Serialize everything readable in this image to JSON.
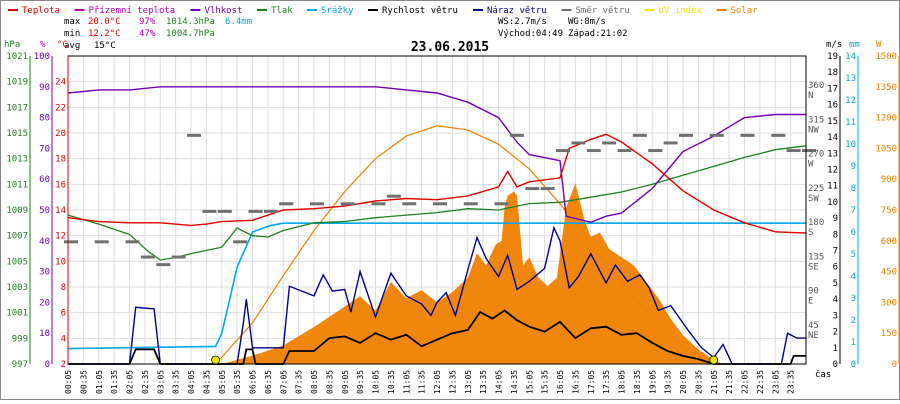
{
  "colors": {
    "teplota": "#e00000",
    "prizemni": "#b000b0",
    "vlhkost": "#7000b0",
    "tlak": "#208020",
    "srazky": "#00a8e8",
    "rychlost": "#000000",
    "naraz": "#000090",
    "smer": "#707070",
    "uv": "#e8e800",
    "solar": "#f08000"
  },
  "legend": [
    {
      "key": "teplota",
      "label": "Teplota"
    },
    {
      "key": "prizemni",
      "label": "Přízemní teplota"
    },
    {
      "key": "vlhkost",
      "label": "Vlhkost"
    },
    {
      "key": "tlak",
      "label": "Tlak"
    },
    {
      "key": "srazky",
      "label": "Srážky"
    },
    {
      "key": "rychlost",
      "label": "Rychlost větru"
    },
    {
      "key": "naraz",
      "label": "Náraz větru"
    },
    {
      "key": "smer",
      "label": "Směr větru"
    },
    {
      "key": "uv",
      "label": "UV index"
    },
    {
      "key": "solar",
      "label": "Solar"
    }
  ],
  "stats": {
    "max": {
      "label": "max",
      "temp": "20.0°C",
      "hum": "97%",
      "press": "1014.3hPa",
      "rain": "6.4mm"
    },
    "min": {
      "label": "min",
      "temp": "12.2°C",
      "hum": "47%",
      "press": "1004.7hPa"
    },
    "avg": {
      "label": "avg",
      "temp": "15°C"
    },
    "ws": "WS:2.7m/s",
    "wg": "WG:8m/s",
    "sunrise": "Východ:04:49",
    "sunset": "Západ:21:02"
  },
  "chart_data": {
    "type": "line",
    "title": "23.06.2015",
    "xlabel": "čas",
    "x_ticks": [
      "00:05",
      "00:35",
      "01:05",
      "01:35",
      "02:05",
      "02:35",
      "03:05",
      "03:35",
      "04:05",
      "04:35",
      "05:05",
      "05:35",
      "06:05",
      "06:35",
      "07:05",
      "07:35",
      "08:05",
      "08:35",
      "09:05",
      "09:35",
      "10:05",
      "10:35",
      "11:05",
      "11:35",
      "12:05",
      "12:35",
      "13:05",
      "13:35",
      "14:05",
      "14:35",
      "15:05",
      "15:35",
      "16:05",
      "16:35",
      "17:05",
      "17:35",
      "18:05",
      "18:35",
      "19:05",
      "19:35",
      "20:05",
      "20:35",
      "21:05",
      "21:35",
      "22:05",
      "22:35",
      "23:05",
      "23:35"
    ],
    "axes": {
      "hpa": {
        "unit": "hPa",
        "min": 997,
        "max": 1021,
        "ticks": [
          997,
          999,
          1001,
          1003,
          1005,
          1007,
          1009,
          1011,
          1013,
          1015,
          1017,
          1019,
          1021
        ]
      },
      "pct": {
        "unit": "%",
        "min": 0,
        "max": 100,
        "ticks": [
          0,
          10,
          20,
          30,
          40,
          50,
          60,
          70,
          80,
          90,
          100
        ]
      },
      "degc": {
        "unit": "°C",
        "min": 2,
        "max": 26,
        "ticks": [
          2,
          4,
          6,
          8,
          10,
          12,
          14,
          16,
          18,
          20,
          22,
          24
        ]
      },
      "dir": {
        "ticks": [
          "",
          "NE",
          "E",
          "SE",
          "S",
          "SW",
          "W",
          "NW",
          "N"
        ],
        "deg": [
          "",
          "45",
          "90",
          "135",
          "180",
          "225",
          "270",
          "315",
          "360"
        ]
      },
      "ms": {
        "unit": "m/s",
        "min": 0,
        "max": 19,
        "ticks": [
          0,
          1,
          2,
          3,
          4,
          5,
          6,
          7,
          8,
          9,
          10,
          11,
          12,
          13,
          14,
          15,
          16,
          17,
          18,
          19
        ]
      },
      "mm": {
        "unit": "mm",
        "min": 0,
        "max": 14,
        "ticks": [
          0,
          1,
          2,
          3,
          4,
          5,
          6,
          7,
          8,
          9,
          10,
          11,
          12,
          13,
          14
        ]
      },
      "w": {
        "unit": "W",
        "min": 0,
        "max": 1500,
        "ticks": [
          0,
          150,
          300,
          450,
          600,
          750,
          900,
          1050,
          1200,
          1350,
          1500
        ]
      }
    },
    "series": {
      "teplota_c": [
        [
          0,
          13.4
        ],
        [
          1,
          13.1
        ],
        [
          2,
          13.0
        ],
        [
          3,
          13.0
        ],
        [
          4,
          12.8
        ],
        [
          4.5,
          12.9
        ],
        [
          5,
          13.1
        ],
        [
          6,
          13.2
        ],
        [
          7,
          14.0
        ],
        [
          8,
          14.1
        ],
        [
          9,
          14.3
        ],
        [
          10,
          14.7
        ],
        [
          11,
          14.9
        ],
        [
          12,
          14.8
        ],
        [
          13,
          15.1
        ],
        [
          14,
          15.8
        ],
        [
          14.3,
          17.0
        ],
        [
          14.6,
          15.8
        ],
        [
          15,
          16.2
        ],
        [
          16,
          16.5
        ],
        [
          16.3,
          18.8
        ],
        [
          17,
          19.5
        ],
        [
          17.5,
          19.9
        ],
        [
          18,
          19.3
        ],
        [
          19,
          17.6
        ],
        [
          20,
          15.5
        ],
        [
          21,
          14.0
        ],
        [
          22,
          13.0
        ],
        [
          23,
          12.3
        ],
        [
          24,
          12.2
        ]
      ],
      "vlhkost_pct": [
        [
          0,
          88
        ],
        [
          1,
          89
        ],
        [
          2,
          89
        ],
        [
          3,
          90
        ],
        [
          4,
          90
        ],
        [
          5,
          90
        ],
        [
          6,
          90
        ],
        [
          7,
          90
        ],
        [
          8,
          90
        ],
        [
          9,
          90
        ],
        [
          10,
          90
        ],
        [
          11,
          89
        ],
        [
          12,
          88
        ],
        [
          13,
          85
        ],
        [
          14,
          80
        ],
        [
          14.6,
          72
        ],
        [
          15,
          68
        ],
        [
          16,
          66
        ],
        [
          16.2,
          48
        ],
        [
          17,
          46
        ],
        [
          17.5,
          48
        ],
        [
          18,
          49
        ],
        [
          18.5,
          53
        ],
        [
          19,
          57
        ],
        [
          19.5,
          63
        ],
        [
          20,
          69
        ],
        [
          21,
          74
        ],
        [
          21.5,
          77
        ],
        [
          22,
          80
        ],
        [
          23,
          81
        ],
        [
          24,
          81
        ]
      ],
      "tlak_hpa": [
        [
          0,
          1008.6
        ],
        [
          1,
          1007.9
        ],
        [
          2,
          1007.1
        ],
        [
          2.6,
          1005.8
        ],
        [
          3,
          1005.1
        ],
        [
          3.5,
          1005.3
        ],
        [
          4,
          1005.6
        ],
        [
          5,
          1006.1
        ],
        [
          5.5,
          1007.6
        ],
        [
          6,
          1007.0
        ],
        [
          6.5,
          1006.9
        ],
        [
          7,
          1007.4
        ],
        [
          8,
          1008.0
        ],
        [
          9,
          1008.1
        ],
        [
          10,
          1008.4
        ],
        [
          11,
          1008.6
        ],
        [
          12,
          1008.8
        ],
        [
          13,
          1009.1
        ],
        [
          14,
          1009.0
        ],
        [
          15,
          1009.5
        ],
        [
          16,
          1009.6
        ],
        [
          17,
          1010.0
        ],
        [
          18,
          1010.4
        ],
        [
          19,
          1011.0
        ],
        [
          20,
          1011.7
        ],
        [
          21,
          1012.4
        ],
        [
          22,
          1013.1
        ],
        [
          23,
          1013.7
        ],
        [
          24,
          1014.0
        ]
      ],
      "srazky_mm": [
        [
          0,
          0.7
        ],
        [
          4.8,
          0.8
        ],
        [
          5.0,
          1.4
        ],
        [
          5.5,
          4.4
        ],
        [
          6.0,
          6.0
        ],
        [
          6.6,
          6.3
        ],
        [
          7.0,
          6.4
        ],
        [
          24,
          6.4
        ]
      ],
      "rychlost_ms": [
        [
          0,
          0
        ],
        [
          2,
          0
        ],
        [
          2.2,
          0.9
        ],
        [
          2.8,
          0.9
        ],
        [
          3,
          0
        ],
        [
          5.7,
          0
        ],
        [
          5.8,
          0.9
        ],
        [
          6,
          0.9
        ],
        [
          6.1,
          0
        ],
        [
          7,
          0
        ],
        [
          7.2,
          0.8
        ],
        [
          8,
          0.8
        ],
        [
          8.5,
          1.6
        ],
        [
          9,
          1.7
        ],
        [
          9.5,
          1.3
        ],
        [
          10,
          1.9
        ],
        [
          10.5,
          1.5
        ],
        [
          11,
          1.8
        ],
        [
          11.5,
          1.1
        ],
        [
          12,
          1.5
        ],
        [
          12.5,
          1.9
        ],
        [
          13,
          2.1
        ],
        [
          13.4,
          3.2
        ],
        [
          13.8,
          2.8
        ],
        [
          14.2,
          3.3
        ],
        [
          14.6,
          2.7
        ],
        [
          15,
          2.3
        ],
        [
          15.5,
          2.0
        ],
        [
          16,
          2.6
        ],
        [
          16.5,
          1.6
        ],
        [
          17,
          2.2
        ],
        [
          17.5,
          2.3
        ],
        [
          18,
          1.8
        ],
        [
          18.5,
          1.9
        ],
        [
          19,
          1.3
        ],
        [
          19.5,
          0.8
        ],
        [
          20,
          0.5
        ],
        [
          20.5,
          0.3
        ],
        [
          21,
          0
        ],
        [
          23.5,
          0
        ],
        [
          23.6,
          0.5
        ],
        [
          24,
          0.5
        ]
      ],
      "naraz_ms": [
        [
          0,
          0
        ],
        [
          2,
          0
        ],
        [
          2.2,
          3.5
        ],
        [
          2.8,
          3.4
        ],
        [
          3,
          0
        ],
        [
          3.5,
          0
        ],
        [
          5.5,
          0
        ],
        [
          5.7,
          2.5
        ],
        [
          5.8,
          4
        ],
        [
          6,
          1
        ],
        [
          7,
          1
        ],
        [
          7.2,
          4.8
        ],
        [
          8,
          4.2
        ],
        [
          8.3,
          5.5
        ],
        [
          8.6,
          4.5
        ],
        [
          9,
          4.6
        ],
        [
          9.2,
          3.2
        ],
        [
          9.5,
          5.7
        ],
        [
          10,
          2.9
        ],
        [
          10.5,
          5.6
        ],
        [
          11,
          4.2
        ],
        [
          11.5,
          3.7
        ],
        [
          11.8,
          3.0
        ],
        [
          12,
          3.8
        ],
        [
          12.3,
          4.4
        ],
        [
          12.6,
          3.0
        ],
        [
          13,
          5.8
        ],
        [
          13.3,
          7.8
        ],
        [
          13.6,
          6.5
        ],
        [
          14,
          5.4
        ],
        [
          14.3,
          6.7
        ],
        [
          14.6,
          4.6
        ],
        [
          15,
          5.1
        ],
        [
          15.5,
          5.9
        ],
        [
          15.8,
          8.4
        ],
        [
          16,
          7.6
        ],
        [
          16.3,
          4.7
        ],
        [
          16.6,
          5.4
        ],
        [
          17,
          6.8
        ],
        [
          17.5,
          5.0
        ],
        [
          17.8,
          6.1
        ],
        [
          18.2,
          5.1
        ],
        [
          18.6,
          5.5
        ],
        [
          18.9,
          4.7
        ],
        [
          19.2,
          3.3
        ],
        [
          19.6,
          3.6
        ],
        [
          19.9,
          2.8
        ],
        [
          20.2,
          2.0
        ],
        [
          20.6,
          1.0
        ],
        [
          21,
          0.4
        ],
        [
          21.3,
          1.2
        ],
        [
          21.6,
          0
        ],
        [
          22,
          0
        ],
        [
          22.5,
          0
        ],
        [
          23.2,
          0
        ],
        [
          23.4,
          1.9
        ],
        [
          23.7,
          1.6
        ],
        [
          24,
          1.6
        ]
      ],
      "solar_w": [
        [
          0,
          0
        ],
        [
          5,
          0
        ],
        [
          5.5,
          20
        ],
        [
          6,
          40
        ],
        [
          7,
          90
        ],
        [
          8,
          180
        ],
        [
          9,
          280
        ],
        [
          9.5,
          330
        ],
        [
          10,
          260
        ],
        [
          10.5,
          400
        ],
        [
          11,
          320
        ],
        [
          11.5,
          360
        ],
        [
          12,
          300
        ],
        [
          12.5,
          350
        ],
        [
          13,
          420
        ],
        [
          13.3,
          540
        ],
        [
          13.6,
          480
        ],
        [
          13.9,
          580
        ],
        [
          14.1,
          600
        ],
        [
          14.2,
          760
        ],
        [
          14.3,
          820
        ],
        [
          14.5,
          840
        ],
        [
          14.6,
          820
        ],
        [
          14.8,
          480
        ],
        [
          15,
          520
        ],
        [
          15.3,
          420
        ],
        [
          15.6,
          380
        ],
        [
          15.9,
          420
        ],
        [
          16.2,
          760
        ],
        [
          16.5,
          880
        ],
        [
          16.8,
          700
        ],
        [
          17,
          620
        ],
        [
          17.3,
          640
        ],
        [
          17.6,
          560
        ],
        [
          18,
          520
        ],
        [
          18.4,
          480
        ],
        [
          18.8,
          400
        ],
        [
          19.2,
          320
        ],
        [
          19.6,
          220
        ],
        [
          20,
          140
        ],
        [
          20.5,
          70
        ],
        [
          21,
          20
        ],
        [
          21.3,
          0
        ],
        [
          24,
          0
        ]
      ],
      "solar_theoretical_w": [
        [
          4.8,
          0
        ],
        [
          6,
          200
        ],
        [
          7,
          430
        ],
        [
          8,
          650
        ],
        [
          9,
          840
        ],
        [
          10,
          1000
        ],
        [
          11,
          1110
        ],
        [
          12,
          1160
        ],
        [
          13,
          1140
        ],
        [
          14,
          1070
        ],
        [
          15,
          950
        ],
        [
          16,
          780
        ],
        [
          17,
          590
        ],
        [
          18,
          400
        ],
        [
          19,
          220
        ],
        [
          20,
          80
        ],
        [
          21,
          0
        ]
      ],
      "smer_deg": [
        [
          0,
          160
        ],
        [
          1,
          160
        ],
        [
          2,
          160
        ],
        [
          2.5,
          140
        ],
        [
          3,
          130
        ],
        [
          3.5,
          140
        ],
        [
          4,
          300
        ],
        [
          4.5,
          200
        ],
        [
          5,
          200
        ],
        [
          5.5,
          160
        ],
        [
          6,
          200
        ],
        [
          6.5,
          200
        ],
        [
          7,
          210
        ],
        [
          8,
          210
        ],
        [
          9,
          210
        ],
        [
          10,
          210
        ],
        [
          10.5,
          220
        ],
        [
          11,
          210
        ],
        [
          12,
          210
        ],
        [
          13,
          210
        ],
        [
          14,
          210
        ],
        [
          14.5,
          300
        ],
        [
          15,
          230
        ],
        [
          15.5,
          230
        ],
        [
          16,
          280
        ],
        [
          16.5,
          290
        ],
        [
          17,
          280
        ],
        [
          17.5,
          290
        ],
        [
          18,
          280
        ],
        [
          18.5,
          300
        ],
        [
          19,
          280
        ],
        [
          19.5,
          290
        ],
        [
          20,
          300
        ],
        [
          21,
          300
        ],
        [
          22,
          300
        ],
        [
          23,
          300
        ],
        [
          23.5,
          280
        ],
        [
          24,
          280
        ]
      ]
    }
  }
}
